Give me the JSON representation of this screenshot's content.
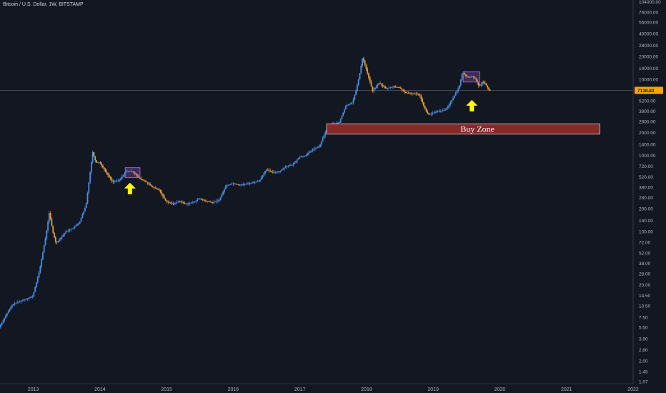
{
  "header": {
    "title": "Bitcoin / U.S. Dollar, 1W, BITSTAMP"
  },
  "colors": {
    "background": "#131722",
    "up_candle": "#4a90e2",
    "down_candle": "#e0a040",
    "buy_zone_fill": "#8b2a2a",
    "buy_zone_border": "#d0d0d0",
    "highlight_box": "#9c5ad0",
    "arrow": "#ffff00",
    "axis_text": "#b2b5be",
    "price_tag": "#f7a600"
  },
  "chart_data": {
    "type": "candlestick",
    "scale": "log",
    "x_ticks": [
      "2013",
      "2014",
      "2015",
      "2016",
      "2017",
      "2018",
      "2019",
      "2020",
      "2021",
      "2022"
    ],
    "y_ticks": [
      "104000.00",
      "76000.00",
      "56000.00",
      "40000.00",
      "28000.00",
      "20000.00",
      "14000.00",
      "10000.00",
      "7138.83",
      "5200.00",
      "3800.00",
      "2800.00",
      "2000.00",
      "1400.00",
      "1000.00",
      "720.00",
      "520.00",
      "380.00",
      "280.00",
      "200.00",
      "140.00",
      "100.00",
      "72.00",
      "52.00",
      "38.00",
      "28.00",
      "20.00",
      "14.50",
      "10.50",
      "7.50",
      "5.50",
      "3.90",
      "2.80",
      "2.00",
      "1.45",
      "1.07"
    ],
    "ylim": [
      1.0,
      110000
    ],
    "xlim": [
      2012.5,
      2022.0
    ],
    "current_price": "7138.83",
    "price_path": [
      [
        2012.5,
        5.5
      ],
      [
        2012.6,
        8
      ],
      [
        2012.7,
        11
      ],
      [
        2012.8,
        12
      ],
      [
        2012.9,
        13
      ],
      [
        2013.0,
        14
      ],
      [
        2013.1,
        30
      ],
      [
        2013.2,
        90
      ],
      [
        2013.25,
        180
      ],
      [
        2013.3,
        100
      ],
      [
        2013.35,
        70
      ],
      [
        2013.5,
        100
      ],
      [
        2013.6,
        110
      ],
      [
        2013.7,
        130
      ],
      [
        2013.8,
        220
      ],
      [
        2013.85,
        500
      ],
      [
        2013.9,
        1100
      ],
      [
        2013.95,
        800
      ],
      [
        2014.0,
        820
      ],
      [
        2014.1,
        600
      ],
      [
        2014.2,
        450
      ],
      [
        2014.3,
        470
      ],
      [
        2014.4,
        620
      ],
      [
        2014.5,
        620
      ],
      [
        2014.6,
        500
      ],
      [
        2014.7,
        450
      ],
      [
        2014.8,
        380
      ],
      [
        2014.9,
        350
      ],
      [
        2015.0,
        250
      ],
      [
        2015.1,
        230
      ],
      [
        2015.2,
        250
      ],
      [
        2015.3,
        230
      ],
      [
        2015.4,
        240
      ],
      [
        2015.5,
        270
      ],
      [
        2015.6,
        250
      ],
      [
        2015.7,
        240
      ],
      [
        2015.8,
        260
      ],
      [
        2015.9,
        400
      ],
      [
        2016.0,
        430
      ],
      [
        2016.1,
        410
      ],
      [
        2016.2,
        420
      ],
      [
        2016.3,
        440
      ],
      [
        2016.4,
        460
      ],
      [
        2016.5,
        650
      ],
      [
        2016.6,
        600
      ],
      [
        2016.7,
        610
      ],
      [
        2016.8,
        720
      ],
      [
        2016.9,
        750
      ],
      [
        2017.0,
        950
      ],
      [
        2017.1,
        1000
      ],
      [
        2017.2,
        1200
      ],
      [
        2017.3,
        1300
      ],
      [
        2017.4,
        2100
      ],
      [
        2017.5,
        2600
      ],
      [
        2017.6,
        2700
      ],
      [
        2017.7,
        4500
      ],
      [
        2017.8,
        5000
      ],
      [
        2017.85,
        7000
      ],
      [
        2017.9,
        11000
      ],
      [
        2017.95,
        19500
      ],
      [
        2018.0,
        14000
      ],
      [
        2018.05,
        10000
      ],
      [
        2018.1,
        7000
      ],
      [
        2018.2,
        9000
      ],
      [
        2018.3,
        7500
      ],
      [
        2018.4,
        8000
      ],
      [
        2018.5,
        7800
      ],
      [
        2018.6,
        6600
      ],
      [
        2018.7,
        6500
      ],
      [
        2018.8,
        6400
      ],
      [
        2018.9,
        3800
      ],
      [
        2018.95,
        3400
      ],
      [
        2019.0,
        3600
      ],
      [
        2019.1,
        3800
      ],
      [
        2019.2,
        4000
      ],
      [
        2019.3,
        5500
      ],
      [
        2019.4,
        8000
      ],
      [
        2019.45,
        12500
      ],
      [
        2019.5,
        11000
      ],
      [
        2019.55,
        10500
      ],
      [
        2019.6,
        11000
      ],
      [
        2019.65,
        10000
      ],
      [
        2019.7,
        8000
      ],
      [
        2019.75,
        9300
      ],
      [
        2019.8,
        8500
      ],
      [
        2019.85,
        7138
      ]
    ],
    "annotations": [
      {
        "type": "rect",
        "label": "Buy Zone",
        "x0": 2017.4,
        "x1": 2021.5,
        "y0": 1900,
        "y1": 2600
      },
      {
        "type": "box",
        "x0": 2014.38,
        "x1": 2014.6,
        "y0": 510,
        "y1": 690
      },
      {
        "type": "box",
        "x0": 2019.45,
        "x1": 2019.7,
        "y0": 9200,
        "y1": 12500
      },
      {
        "type": "arrow",
        "x": 2014.45,
        "y": 360
      },
      {
        "type": "arrow",
        "x": 2019.58,
        "y": 4400
      }
    ]
  }
}
